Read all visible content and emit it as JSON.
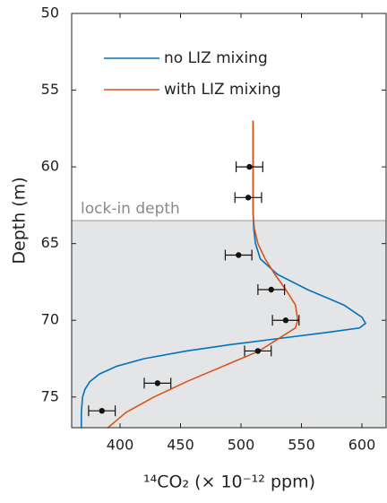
{
  "chart_data": {
    "type": "line",
    "x_label": "¹⁴CO₂ (× 10⁻¹² ppm)",
    "y_label": "Depth (m)",
    "xlim": [
      360,
      620
    ],
    "xticks": [
      400,
      450,
      500,
      550,
      600
    ],
    "ylim": [
      50,
      77
    ],
    "yticks": [
      50,
      55,
      60,
      65,
      70,
      75
    ],
    "y_reversed": true,
    "lock_in": {
      "label": "lock-in depth",
      "depth": 63.5,
      "color": "#e4e5e7"
    },
    "series": [
      {
        "name": "no LIZ mixing",
        "color": "#0072BD",
        "depths": [
          57,
          60,
          63,
          64,
          65,
          66,
          67,
          68,
          69,
          69.8,
          70.2,
          70.5,
          70.8,
          71.2,
          71.6,
          72,
          72.5,
          73,
          73.5,
          74,
          74.5,
          75,
          76,
          77
        ],
        "values": [
          510,
          510,
          510,
          510.5,
          512,
          516,
          530,
          555,
          585,
          600,
          603,
          598,
          570,
          530,
          490,
          455,
          420,
          397,
          383,
          375,
          371,
          369,
          368,
          368
        ]
      },
      {
        "name": "with LIZ mixing",
        "color": "#D95319",
        "depths": [
          57,
          60,
          63,
          64,
          65,
          66,
          67,
          68,
          69,
          70,
          70.5,
          71,
          72,
          73,
          74,
          75,
          76,
          77
        ],
        "values": [
          510,
          510,
          510,
          511,
          514,
          520,
          528,
          537,
          545,
          547,
          545,
          535,
          515,
          485,
          455,
          428,
          405,
          390
        ]
      }
    ],
    "measurements": {
      "color": "#111111",
      "depths": [
        60,
        62,
        65.75,
        68,
        70,
        72,
        74.1,
        75.9
      ],
      "values": [
        507,
        506,
        498,
        525,
        537,
        514,
        431,
        385
      ],
      "errors": [
        11,
        11,
        11,
        11,
        11,
        11,
        11,
        11
      ]
    },
    "legend": "upper left"
  }
}
